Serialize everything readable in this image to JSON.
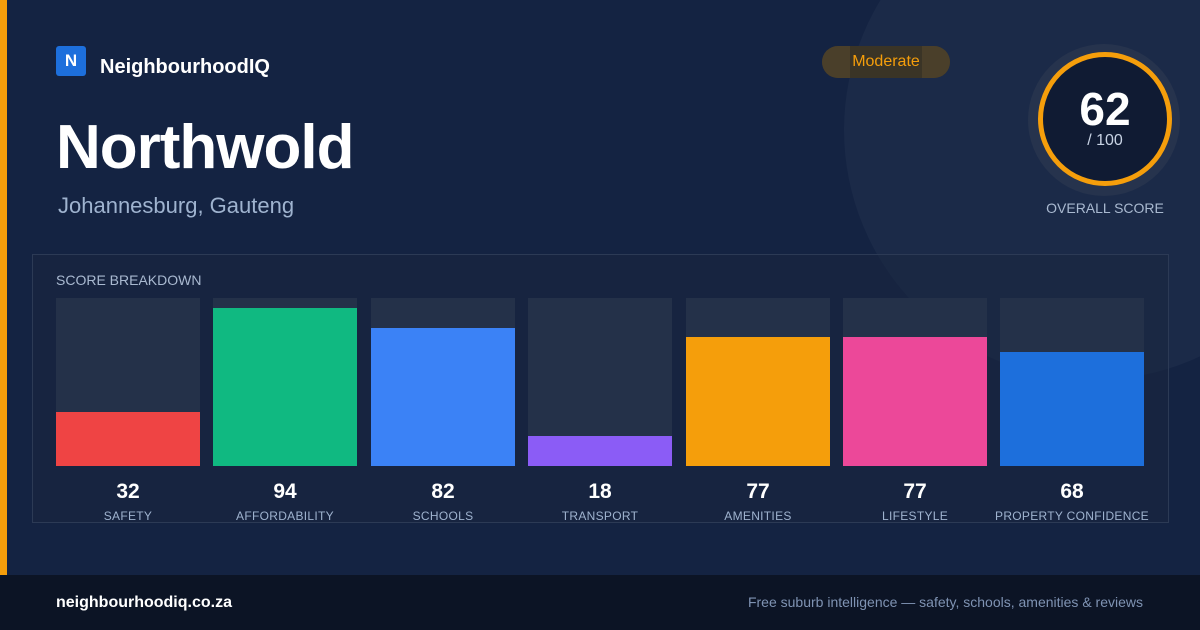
{
  "brand": {
    "logo_letter": "N",
    "name": "NeighbourhoodIQ",
    "logo_color": "#1d6fdc"
  },
  "suburb": {
    "name": "Northwold",
    "location": "Johannesburg, Gauteng"
  },
  "rating": {
    "badge": "Moderate",
    "badge_color": "#f59e0b"
  },
  "overall": {
    "score": "62",
    "denominator": "/ 100",
    "label": "OVERALL SCORE",
    "ring_color": "#f59e0b"
  },
  "breakdown": {
    "title": "SCORE BREAKDOWN",
    "max": 100,
    "items": [
      {
        "value": 32,
        "label": "SAFETY",
        "color": "#ef4444"
      },
      {
        "value": 94,
        "label": "AFFORDABILITY",
        "color": "#10b981"
      },
      {
        "value": 82,
        "label": "SCHOOLS",
        "color": "#3b82f6"
      },
      {
        "value": 18,
        "label": "TRANSPORT",
        "color": "#8b5cf6"
      },
      {
        "value": 77,
        "label": "AMENITIES",
        "color": "#f59e0b"
      },
      {
        "value": 77,
        "label": "LIFESTYLE",
        "color": "#ec4899"
      },
      {
        "value": 68,
        "label": "PROPERTY CONFIDENCE",
        "color": "#1d6fdc"
      }
    ]
  },
  "footer": {
    "url": "neighbourhoodiq.co.za",
    "tagline": "Free suburb intelligence — safety, schools, amenities & reviews"
  }
}
